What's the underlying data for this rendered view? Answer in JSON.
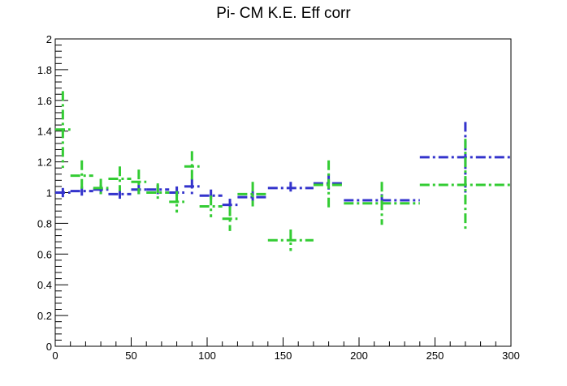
{
  "title": "Pi- CM K.E. Eff corr",
  "chart_data": {
    "type": "scatter",
    "title": "Pi- CM K.E. Eff corr",
    "xlabel": "",
    "ylabel": "",
    "xlim": [
      0,
      300
    ],
    "ylim": [
      0,
      2
    ],
    "x_ticks": [
      "0",
      "50",
      "100",
      "150",
      "200",
      "250",
      "300"
    ],
    "y_ticks": [
      "0",
      "0.2",
      "0.4",
      "0.6",
      "0.8",
      "1",
      "1.2",
      "1.4",
      "1.6",
      "1.8",
      "2"
    ],
    "grid": false,
    "series": [
      {
        "color": "#3333cc",
        "points": [
          {
            "x": 5,
            "xerr": 5,
            "y": 1.0,
            "yerr": 0.03
          },
          {
            "x": 17.5,
            "xerr": 7.5,
            "y": 1.01,
            "yerr": 0.03
          },
          {
            "x": 30,
            "xerr": 5,
            "y": 1.02,
            "yerr": 0.03
          },
          {
            "x": 42.5,
            "xerr": 7.5,
            "y": 0.99,
            "yerr": 0.03
          },
          {
            "x": 55,
            "xerr": 5,
            "y": 1.02,
            "yerr": 0.03
          },
          {
            "x": 67.5,
            "xerr": 7.5,
            "y": 1.02,
            "yerr": 0.03
          },
          {
            "x": 80,
            "xerr": 5,
            "y": 1.0,
            "yerr": 0.04
          },
          {
            "x": 90,
            "xerr": 5,
            "y": 1.04,
            "yerr": 0.05
          },
          {
            "x": 102.5,
            "xerr": 7.5,
            "y": 0.98,
            "yerr": 0.04
          },
          {
            "x": 115,
            "xerr": 5,
            "y": 0.92,
            "yerr": 0.04
          },
          {
            "x": 130,
            "xerr": 10,
            "y": 0.97,
            "yerr": 0.04
          },
          {
            "x": 155,
            "xerr": 15,
            "y": 1.03,
            "yerr": 0.04
          },
          {
            "x": 180,
            "xerr": 10,
            "y": 1.06,
            "yerr": 0.06
          },
          {
            "x": 215,
            "xerr": 25,
            "y": 0.95,
            "yerr": 0.04
          },
          {
            "x": 270,
            "xerr": 30,
            "y": 1.23,
            "yerr": 0.23
          }
        ]
      },
      {
        "color": "#33cc33",
        "points": [
          {
            "x": 5,
            "xerr": 5,
            "y": 1.41,
            "yerr": 0.25
          },
          {
            "x": 17.5,
            "xerr": 7.5,
            "y": 1.11,
            "yerr": 0.1
          },
          {
            "x": 30,
            "xerr": 5,
            "y": 1.03,
            "yerr": 0.06
          },
          {
            "x": 42.5,
            "xerr": 7.5,
            "y": 1.09,
            "yerr": 0.08
          },
          {
            "x": 55,
            "xerr": 5,
            "y": 1.07,
            "yerr": 0.08
          },
          {
            "x": 67.5,
            "xerr": 7.5,
            "y": 1.0,
            "yerr": 0.06
          },
          {
            "x": 80,
            "xerr": 5,
            "y": 0.94,
            "yerr": 0.07
          },
          {
            "x": 90,
            "xerr": 5,
            "y": 1.17,
            "yerr": 0.1
          },
          {
            "x": 102.5,
            "xerr": 7.5,
            "y": 0.91,
            "yerr": 0.07
          },
          {
            "x": 115,
            "xerr": 5,
            "y": 0.83,
            "yerr": 0.08
          },
          {
            "x": 130,
            "xerr": 10,
            "y": 0.99,
            "yerr": 0.08
          },
          {
            "x": 155,
            "xerr": 15,
            "y": 0.69,
            "yerr": 0.07
          },
          {
            "x": 180,
            "xerr": 10,
            "y": 1.05,
            "yerr": 0.16
          },
          {
            "x": 215,
            "xerr": 25,
            "y": 0.93,
            "yerr": 0.14
          },
          {
            "x": 270,
            "xerr": 30,
            "y": 1.05,
            "yerr": 0.3
          }
        ]
      }
    ]
  }
}
